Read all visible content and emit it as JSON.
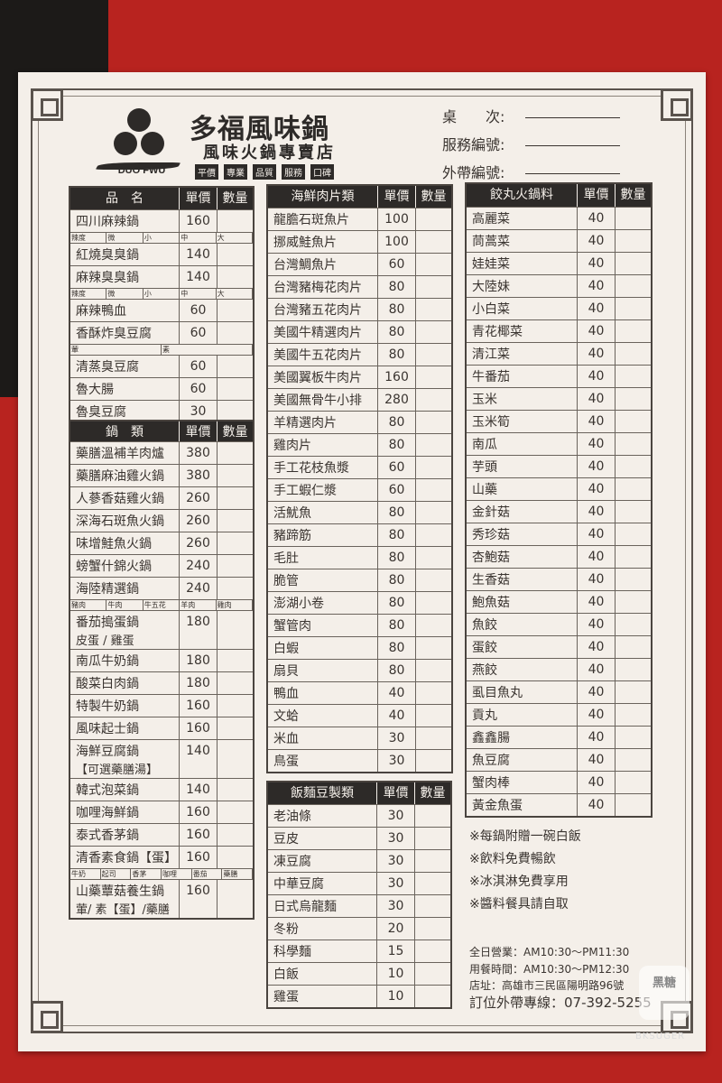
{
  "header": {
    "title": "多福風味鍋",
    "subtitle": "風味火鍋專賣店",
    "brand_en": "DUO FWU",
    "tags": [
      "平價",
      "專業",
      "品質",
      "服務",
      "口碑"
    ]
  },
  "order_fields": [
    {
      "label": "桌　　次:"
    },
    {
      "label": "服務編號:"
    },
    {
      "label": "外帶編號:"
    }
  ],
  "columns": {
    "price": "單價",
    "qty": "數量"
  },
  "tables": [
    {
      "title": "品　名",
      "items": [
        {
          "name": "四川麻辣鍋",
          "price": "160",
          "opts": [
            "辣度",
            "微",
            "小",
            "中",
            "大"
          ]
        },
        {
          "name": "紅燒臭臭鍋",
          "price": "140"
        },
        {
          "name": "麻辣臭臭鍋",
          "price": "140",
          "opts": [
            "辣度",
            "微",
            "小",
            "中",
            "大"
          ]
        },
        {
          "name": "麻辣鴨血",
          "price": "60"
        },
        {
          "name": "香酥炸臭豆腐",
          "price": "60",
          "opts": [
            "葷",
            "素"
          ]
        },
        {
          "name": "清蒸臭豆腐",
          "price": "60"
        },
        {
          "name": "魯大腸",
          "price": "60"
        },
        {
          "name": "魯臭豆腐",
          "price": "30"
        }
      ]
    },
    {
      "title": "鍋　類",
      "items": [
        {
          "name": "藥膳溫補羊肉爐",
          "price": "380"
        },
        {
          "name": "藥膳麻油雞火鍋",
          "price": "380"
        },
        {
          "name": "人蔘香菇雞火鍋",
          "price": "260"
        },
        {
          "name": "深海石斑魚火鍋",
          "price": "260"
        },
        {
          "name": "味增鮭魚火鍋",
          "price": "260"
        },
        {
          "name": "螃蟹什錦火鍋",
          "price": "240"
        },
        {
          "name": "海陸精選鍋",
          "price": "240",
          "opts": [
            "豬肉",
            "牛肉",
            "牛五花",
            "羊肉",
            "雞肉"
          ]
        },
        {
          "name": "番茄搗蛋鍋",
          "sub": "皮蛋 / 雞蛋",
          "price": "180"
        },
        {
          "name": "南瓜牛奶鍋",
          "price": "180"
        },
        {
          "name": "酸菜白肉鍋",
          "price": "180"
        },
        {
          "name": "特製牛奶鍋",
          "price": "160"
        },
        {
          "name": "風味起士鍋",
          "price": "160"
        },
        {
          "name": "海鮮豆腐鍋",
          "sub": "【可選藥膳湯】",
          "price": "140"
        },
        {
          "name": "韓式泡菜鍋",
          "price": "140"
        },
        {
          "name": "咖哩海鮮鍋",
          "price": "160"
        },
        {
          "name": "泰式香茅鍋",
          "price": "160"
        },
        {
          "name": "清香素食鍋【蛋】",
          "price": "160",
          "opts": [
            "牛奶",
            "起司",
            "香茅",
            "咖哩",
            "番茄",
            "藥膳"
          ]
        },
        {
          "name": "山藥蕈菇養生鍋",
          "sub": "葷/ 素【蛋】/藥膳",
          "price": "160"
        }
      ]
    },
    {
      "title": "海鮮肉片類",
      "items": [
        {
          "name": "龍膽石斑魚片",
          "price": "100"
        },
        {
          "name": "挪威鮭魚片",
          "price": "100"
        },
        {
          "name": "台灣鯛魚片",
          "price": "60"
        },
        {
          "name": "台灣豬梅花肉片",
          "price": "80"
        },
        {
          "name": "台灣豬五花肉片",
          "price": "80"
        },
        {
          "name": "美國牛精選肉片",
          "price": "80"
        },
        {
          "name": "美國牛五花肉片",
          "price": "80"
        },
        {
          "name": "美國翼板牛肉片",
          "price": "160"
        },
        {
          "name": "美國無骨牛小排",
          "price": "280"
        },
        {
          "name": "羊精選肉片",
          "price": "80"
        },
        {
          "name": "雞肉片",
          "price": "80"
        },
        {
          "name": "手工花枝魚漿",
          "price": "60"
        },
        {
          "name": "手工蝦仁漿",
          "price": "60"
        },
        {
          "name": "活魷魚",
          "price": "80"
        },
        {
          "name": "豬蹄筋",
          "price": "80"
        },
        {
          "name": "毛肚",
          "price": "80"
        },
        {
          "name": "脆管",
          "price": "80"
        },
        {
          "name": "澎湖小卷",
          "price": "80"
        },
        {
          "name": "蟹管肉",
          "price": "80"
        },
        {
          "name": "白蝦",
          "price": "80"
        },
        {
          "name": "扇貝",
          "price": "80"
        },
        {
          "name": "鴨血",
          "price": "40"
        },
        {
          "name": "文蛤",
          "price": "40"
        },
        {
          "name": "米血",
          "price": "30"
        },
        {
          "name": "鳥蛋",
          "price": "30"
        }
      ]
    },
    {
      "title": "飯麵豆製類",
      "items": [
        {
          "name": "老油條",
          "price": "30"
        },
        {
          "name": "豆皮",
          "price": "30"
        },
        {
          "name": "凍豆腐",
          "price": "30"
        },
        {
          "name": "中華豆腐",
          "price": "30"
        },
        {
          "name": "日式烏龍麵",
          "price": "30"
        },
        {
          "name": "冬粉",
          "price": "20"
        },
        {
          "name": "科學麵",
          "price": "15"
        },
        {
          "name": "白飯",
          "price": "10"
        },
        {
          "name": "雞蛋",
          "price": "10"
        }
      ]
    },
    {
      "title": "餃丸火鍋料",
      "items": [
        {
          "name": "高麗菜",
          "price": "40"
        },
        {
          "name": "茼蒿菜",
          "price": "40"
        },
        {
          "name": "娃娃菜",
          "price": "40"
        },
        {
          "name": "大陸妹",
          "price": "40"
        },
        {
          "name": "小白菜",
          "price": "40"
        },
        {
          "name": "青花椰菜",
          "price": "40"
        },
        {
          "name": "清江菜",
          "price": "40"
        },
        {
          "name": "牛番茄",
          "price": "40"
        },
        {
          "name": "玉米",
          "price": "40"
        },
        {
          "name": "玉米筍",
          "price": "40"
        },
        {
          "name": "南瓜",
          "price": "40"
        },
        {
          "name": "芋頭",
          "price": "40"
        },
        {
          "name": "山藥",
          "price": "40"
        },
        {
          "name": "金針菇",
          "price": "40"
        },
        {
          "name": "秀珍菇",
          "price": "40"
        },
        {
          "name": "杏鮑菇",
          "price": "40"
        },
        {
          "name": "生香菇",
          "price": "40"
        },
        {
          "name": "鮑魚菇",
          "price": "40"
        },
        {
          "name": "魚餃",
          "price": "40"
        },
        {
          "name": "蛋餃",
          "price": "40"
        },
        {
          "name": "燕餃",
          "price": "40"
        },
        {
          "name": "虱目魚丸",
          "price": "40"
        },
        {
          "name": "貢丸",
          "price": "40"
        },
        {
          "name": "鑫鑫腸",
          "price": "40"
        },
        {
          "name": "魚豆腐",
          "price": "40"
        },
        {
          "name": "蟹肉棒",
          "price": "40"
        },
        {
          "name": "黃金魚蛋",
          "price": "40"
        }
      ]
    }
  ],
  "notes": [
    "※每鍋附贈一碗白飯",
    "※飲料免費暢飲",
    "※冰淇淋免費享用",
    "※醬料餐具請自取"
  ],
  "info": {
    "hours": "全日營業：AM10:30～PM11:30",
    "dining": "用餐時間：AM10:30～PM12:30",
    "address": "店址：高雄市三民區陽明路96號",
    "phone": "訂位外帶專線：07-392-5255"
  },
  "watermark": {
    "logo": "黑糖",
    "text": "BKSUGER"
  }
}
